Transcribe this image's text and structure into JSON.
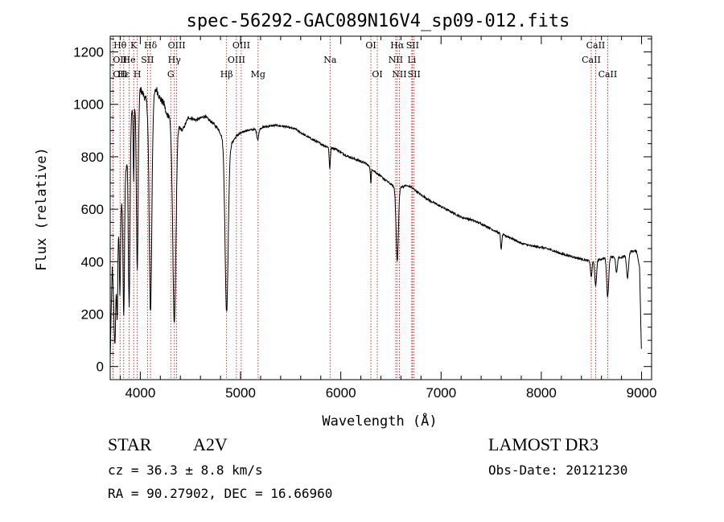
{
  "chart_data": {
    "type": "line",
    "title": "spec-56292-GAC089N16V4_sp09-012.fits",
    "xlabel": "Wavelength (Å)",
    "ylabel": "Flux (relative)",
    "xlim": [
      3700,
      9100
    ],
    "ylim": [
      -50,
      1260
    ],
    "xticks": [
      4000,
      5000,
      6000,
      7000,
      8000,
      9000
    ],
    "yticks": [
      0,
      200,
      400,
      600,
      800,
      1000,
      1200
    ],
    "xtick_labels": [
      "4000",
      "5000",
      "6000",
      "7000",
      "8000",
      "9000"
    ],
    "ytick_labels": [
      "0",
      "200",
      "400",
      "600",
      "800",
      "1000",
      "1200"
    ],
    "continuum": [
      [
        3700,
        30
      ],
      [
        3720,
        380
      ],
      [
        3740,
        200
      ],
      [
        3760,
        420
      ],
      [
        3790,
        560
      ],
      [
        3820,
        640
      ],
      [
        3860,
        760
      ],
      [
        3880,
        860
      ],
      [
        3910,
        960
      ],
      [
        3940,
        1010
      ],
      [
        3970,
        960
      ],
      [
        4000,
        1060
      ],
      [
        4040,
        1030
      ],
      [
        4080,
        1000
      ],
      [
        4120,
        1020
      ],
      [
        4160,
        1060
      ],
      [
        4200,
        1020
      ],
      [
        4240,
        1000
      ],
      [
        4260,
        960
      ],
      [
        4290,
        960
      ],
      [
        4330,
        880
      ],
      [
        4370,
        920
      ],
      [
        4420,
        900
      ],
      [
        4480,
        950
      ],
      [
        4560,
        940
      ],
      [
        4640,
        955
      ],
      [
        4720,
        930
      ],
      [
        4780,
        905
      ],
      [
        4850,
        850
      ],
      [
        4900,
        845
      ],
      [
        4960,
        880
      ],
      [
        5050,
        900
      ],
      [
        5150,
        905
      ],
      [
        5250,
        915
      ],
      [
        5350,
        920
      ],
      [
        5450,
        915
      ],
      [
        5550,
        905
      ],
      [
        5650,
        880
      ],
      [
        5750,
        860
      ],
      [
        5850,
        840
      ],
      [
        5950,
        830
      ],
      [
        6050,
        805
      ],
      [
        6150,
        790
      ],
      [
        6250,
        775
      ],
      [
        6350,
        740
      ],
      [
        6450,
        710
      ],
      [
        6550,
        680
      ],
      [
        6650,
        690
      ],
      [
        6700,
        685
      ],
      [
        6800,
        655
      ],
      [
        6900,
        630
      ],
      [
        7000,
        610
      ],
      [
        7100,
        590
      ],
      [
        7200,
        570
      ],
      [
        7300,
        560
      ],
      [
        7400,
        545
      ],
      [
        7500,
        525
      ],
      [
        7600,
        505
      ],
      [
        7700,
        490
      ],
      [
        7800,
        470
      ],
      [
        7900,
        460
      ],
      [
        8000,
        455
      ],
      [
        8100,
        445
      ],
      [
        8200,
        430
      ],
      [
        8300,
        420
      ],
      [
        8400,
        410
      ],
      [
        8500,
        400
      ],
      [
        8600,
        410
      ],
      [
        8700,
        420
      ],
      [
        8800,
        415
      ],
      [
        8900,
        440
      ],
      [
        8950,
        440
      ],
      [
        8980,
        380
      ],
      [
        9000,
        30
      ]
    ],
    "absorptions": [
      [
        3750,
        200,
        10
      ],
      [
        3770,
        280,
        8
      ],
      [
        3797,
        300,
        8
      ],
      [
        3835,
        500,
        10
      ],
      [
        3889,
        650,
        12
      ],
      [
        3934,
        300,
        6
      ],
      [
        3970,
        600,
        12
      ],
      [
        4102,
        800,
        18
      ],
      [
        4340,
        720,
        22
      ],
      [
        4861,
        640,
        22
      ],
      [
        5172,
        40,
        14
      ],
      [
        5890,
        80,
        8
      ],
      [
        6300,
        60,
        6
      ],
      [
        6563,
        280,
        16
      ],
      [
        7600,
        60,
        8
      ],
      [
        8498,
        60,
        10
      ],
      [
        8542,
        100,
        12
      ],
      [
        8662,
        150,
        14
      ],
      [
        8750,
        60,
        12
      ],
      [
        8860,
        90,
        14
      ]
    ],
    "spectral_lines": [
      {
        "label": "Hθ",
        "x": 3798,
        "row": 0,
        "anchor": "middle"
      },
      {
        "label": "K",
        "x": 3934,
        "row": 0,
        "anchor": "middle"
      },
      {
        "label": "Hδ",
        "x": 4102,
        "row": 0,
        "anchor": "middle"
      },
      {
        "label": "OIII",
        "x": 4363,
        "row": 0,
        "anchor": "middle"
      },
      {
        "label": "OIII",
        "x": 5007,
        "row": 0,
        "anchor": "middle"
      },
      {
        "label": "OI",
        "x": 6300,
        "row": 0,
        "anchor": "middle"
      },
      {
        "label": "Hα",
        "x": 6563,
        "row": 0,
        "anchor": "middle"
      },
      {
        "label": "SII",
        "x": 6716,
        "row": 0,
        "anchor": "middle"
      },
      {
        "label": "CaII",
        "x": 8542,
        "row": 0,
        "anchor": "middle"
      },
      {
        "label": "OII",
        "x": 3727,
        "row": 1,
        "anchor": "start"
      },
      {
        "label": "He",
        "x": 3889,
        "row": 1,
        "anchor": "middle"
      },
      {
        "label": "SII",
        "x": 4072,
        "row": 1,
        "anchor": "middle"
      },
      {
        "label": "Hγ",
        "x": 4340,
        "row": 1,
        "anchor": "middle"
      },
      {
        "label": "OIII",
        "x": 4959,
        "row": 1,
        "anchor": "middle"
      },
      {
        "label": "Na",
        "x": 5893,
        "row": 1,
        "anchor": "middle"
      },
      {
        "label": "NII",
        "x": 6548,
        "row": 1,
        "anchor": "middle"
      },
      {
        "label": "Li",
        "x": 6708,
        "row": 1,
        "anchor": "middle"
      },
      {
        "label": "CaII",
        "x": 8498,
        "row": 1,
        "anchor": "middle"
      },
      {
        "label": "OII",
        "x": 3727,
        "row": 2,
        "anchor": "start"
      },
      {
        "label": "Hε",
        "x": 3835,
        "row": 2,
        "anchor": "middle"
      },
      {
        "label": "H",
        "x": 3970,
        "row": 2,
        "anchor": "middle"
      },
      {
        "label": "G",
        "x": 4304,
        "row": 2,
        "anchor": "middle"
      },
      {
        "label": "Hβ",
        "x": 4861,
        "row": 2,
        "anchor": "middle"
      },
      {
        "label": "Mg",
        "x": 5175,
        "row": 2,
        "anchor": "middle"
      },
      {
        "label": "OI",
        "x": 6364,
        "row": 2,
        "anchor": "middle"
      },
      {
        "label": "NII",
        "x": 6584,
        "row": 2,
        "anchor": "middle"
      },
      {
        "label": "SII",
        "x": 6731,
        "row": 2,
        "anchor": "middle"
      },
      {
        "label": "CaII",
        "x": 8662,
        "row": 2,
        "anchor": "middle"
      }
    ],
    "colors": {
      "spectrum": "#000000",
      "lines": "#cc0000",
      "axes": "#000000"
    }
  },
  "info": {
    "object_class": "STAR",
    "subclass": "A2V",
    "survey": "LAMOST DR3",
    "redshift": "cz = 36.3 ± 8.8 km/s",
    "obs_date": "Obs-Date: 20121230",
    "coords": "RA =  90.27902, DEC =  16.66960"
  }
}
